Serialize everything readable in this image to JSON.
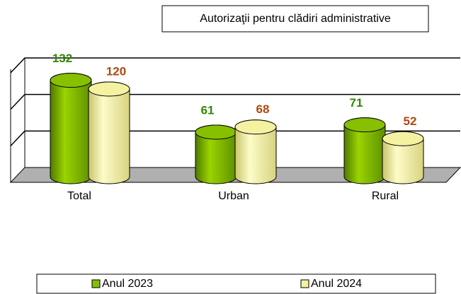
{
  "chart_data": {
    "type": "bar",
    "title": "Autorizaţii pentru clădiri administrative",
    "categories": [
      "Total",
      "Urban",
      "Rural"
    ],
    "series": [
      {
        "name": "Anul 2023",
        "color": "#86c000",
        "label_color": "#2e8b00",
        "values": [
          132,
          61,
          71
        ]
      },
      {
        "name": "Anul 2024",
        "color": "#f4f2a0",
        "label_color": "#b0480f",
        "values": [
          120,
          68,
          52
        ]
      }
    ],
    "ylim": [
      0,
      150
    ],
    "yticks": [
      0,
      50,
      100,
      150
    ],
    "grid": true,
    "legend": "bottom"
  }
}
